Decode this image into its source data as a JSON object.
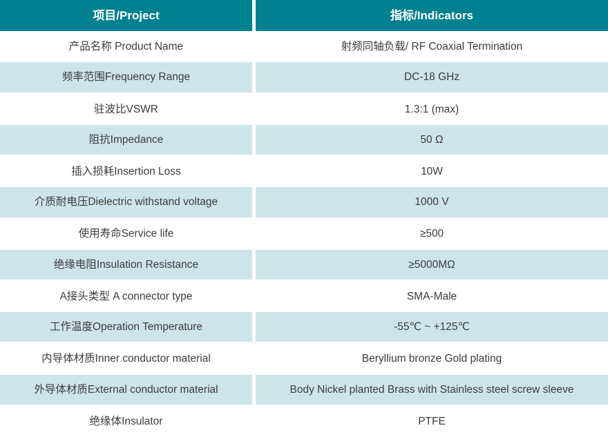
{
  "colors": {
    "header_bg": "#00818f",
    "header_text": "#ffffff",
    "alt_row_bg": "#cde5e9",
    "plain_row_bg": "#ffffff",
    "body_text": "#3c3c3c"
  },
  "header": {
    "project": "项目/Project",
    "indicators": "指标/Indicators"
  },
  "rows": [
    {
      "project": "产品名称 Product Name",
      "indicator": "射频同轴负载/ RF Coaxial Termination"
    },
    {
      "project": "频率范围Frequency Range",
      "indicator": "DC-18 GHz"
    },
    {
      "project": "驻波比VSWR",
      "indicator": "1.3:1 (max)"
    },
    {
      "project": "阻抗Impedance",
      "indicator": "50 Ω"
    },
    {
      "project": "插入损耗Insertion Loss",
      "indicator": "10W"
    },
    {
      "project": "介质耐电压Dielectric withstand voltage",
      "indicator": "1000 V"
    },
    {
      "project": "使用寿命Service life",
      "indicator": "≥500"
    },
    {
      "project": "绝缘电阻Insulation Resistance",
      "indicator": "≥5000MΩ"
    },
    {
      "project": "A接头类型 A connector type",
      "indicator": "SMA-Male"
    },
    {
      "project": "工作温度Operation Temperature",
      "indicator": "-55℃ ~ +125℃"
    },
    {
      "project": "内导体材质Inner conductor material",
      "indicator": "Beryllium bronze Gold plating"
    },
    {
      "project": "外导体材质External conductor material",
      "indicator": "Body Nickel planted Brass with Stainless steel screw sleeve"
    },
    {
      "project": "绝缘体Insulator",
      "indicator": "PTFE"
    }
  ]
}
